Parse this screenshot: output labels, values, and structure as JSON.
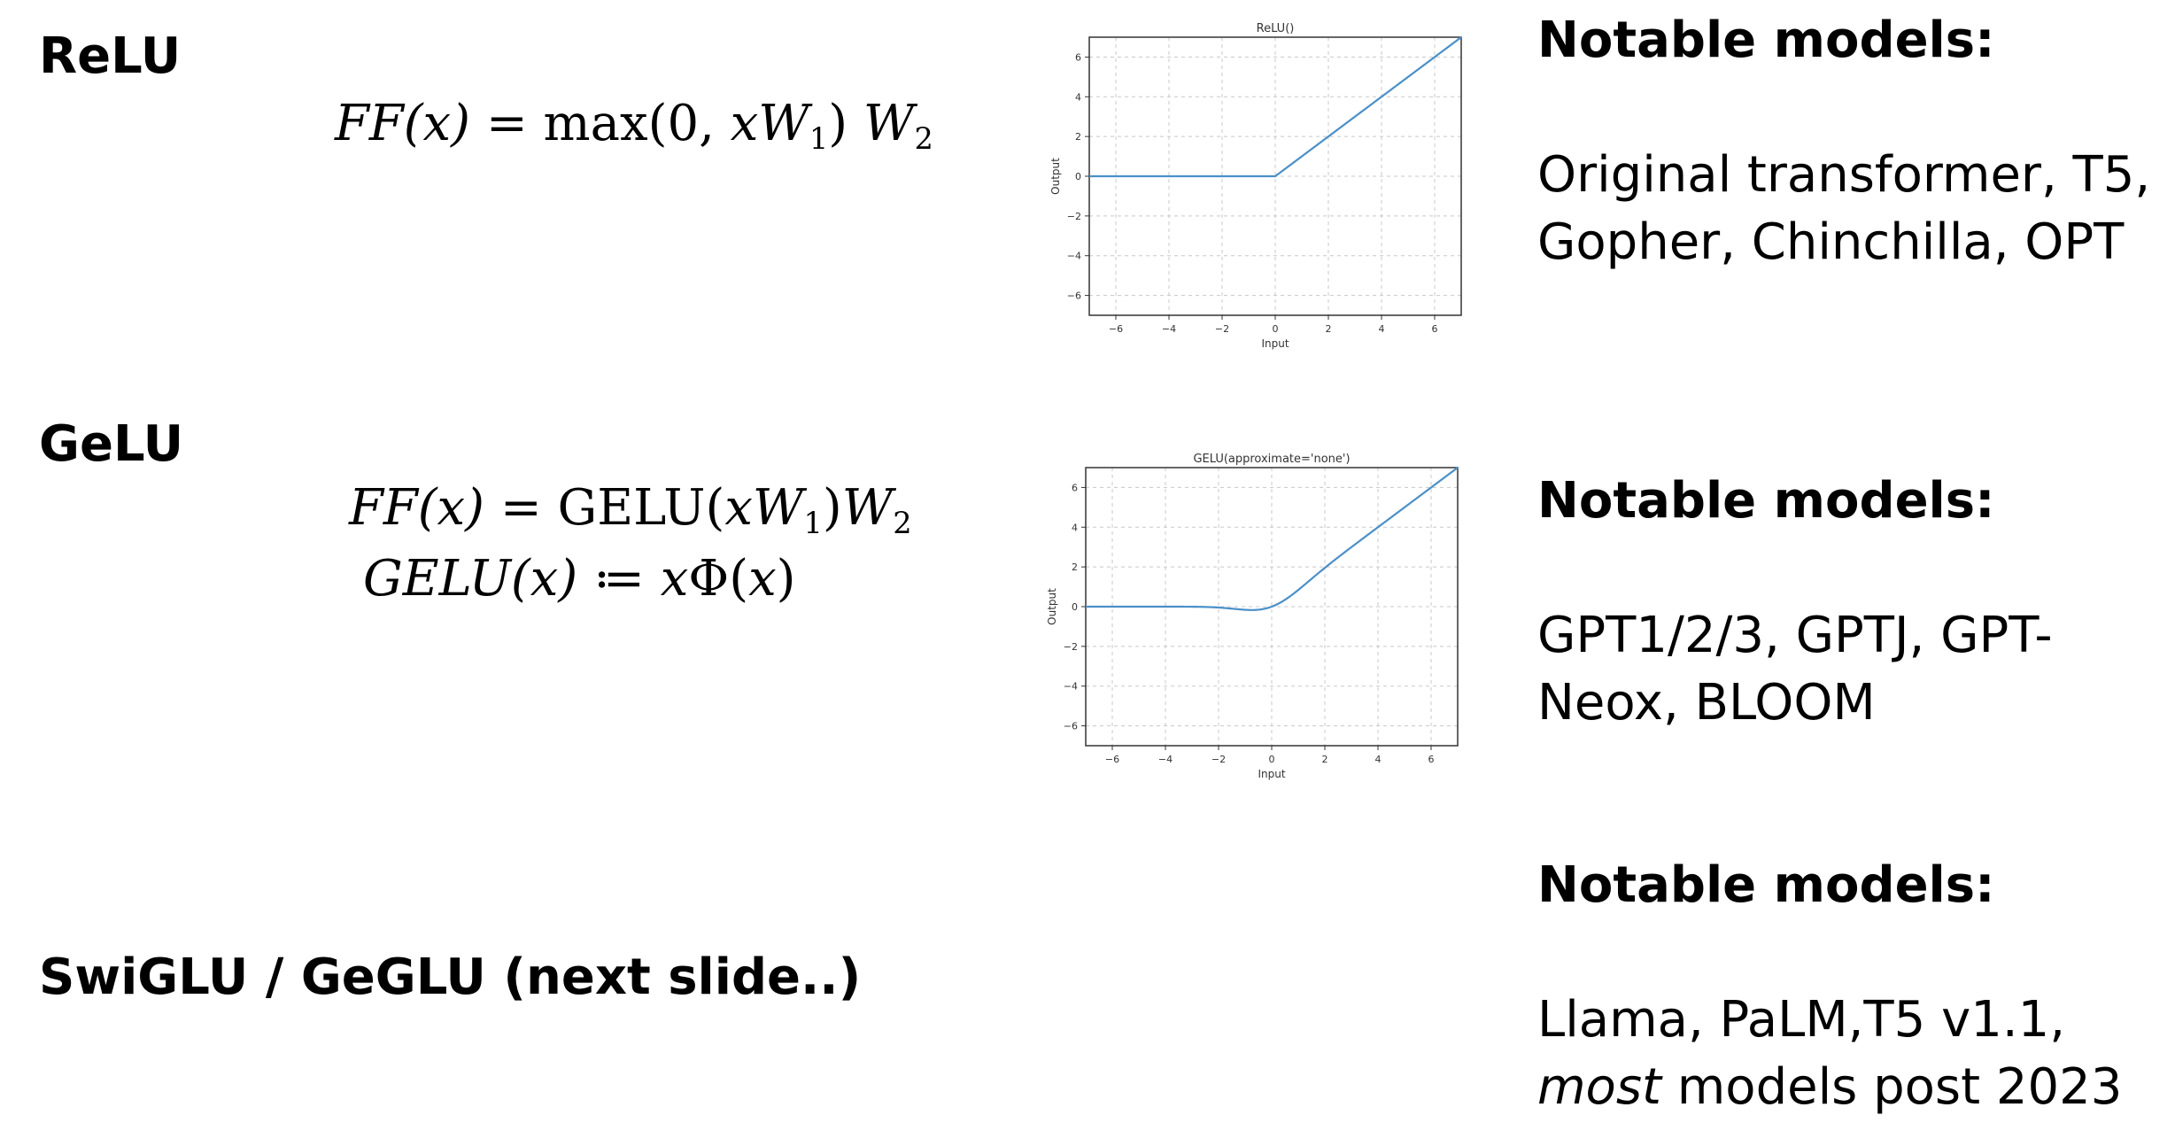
{
  "sections": {
    "relu": {
      "heading": "ReLU",
      "formula": {
        "lhs": "FF(x)",
        "eq": "=",
        "rhs_fn": "max(0, ",
        "x": "x",
        "W1": "W",
        "sub1": "1",
        "close": ")",
        "W2": "W",
        "sub2": "2"
      },
      "notable_title": "Notable models:",
      "notable_text": "Original transformer, T5, Gopher, Chinchilla, OPT"
    },
    "gelu": {
      "heading": "GeLU",
      "formula1": {
        "lhs": "FF(x)",
        "eq": "=",
        "fn": "GELU(",
        "x": "x",
        "W1": "W",
        "sub1": "1",
        "close": ")",
        "W2": "W",
        "sub2": "2"
      },
      "formula2": {
        "lhs": "GELU(x)",
        "def": "≔",
        "rhs_x": "x",
        "rhs_phi": "Φ(",
        "rhs_arg": "x",
        "rhs_close": ")"
      },
      "notable_title": "Notable models:",
      "notable_text": "GPT1/2/3, GPTJ, GPT-Neox, BLOOM"
    },
    "swiglu": {
      "heading": "SwiGLU / GeGLU (next slide..)",
      "notable_title": "Notable models:",
      "notable_text_prefix": "Llama, PaLM,T5 v1.1, ",
      "notable_text_italic": "most",
      "notable_text_suffix": " models post 2023"
    }
  },
  "chart_data": [
    {
      "type": "line",
      "title": "ReLU()",
      "xlabel": "Input",
      "ylabel": "Output",
      "xlim": [
        -7,
        7
      ],
      "ylim": [
        -7,
        7
      ],
      "xticks": [
        -6,
        -4,
        -2,
        0,
        2,
        4,
        6
      ],
      "yticks": [
        -6,
        -4,
        -2,
        0,
        2,
        4,
        6
      ],
      "tick_labels": [
        "−6",
        "−4",
        "−2",
        "0",
        "2",
        "4",
        "6"
      ],
      "grid": true,
      "function": "relu",
      "color": "#4a90c8"
    },
    {
      "type": "line",
      "title": "GELU(approximate='none')",
      "xlabel": "Input",
      "ylabel": "Output",
      "xlim": [
        -7,
        7
      ],
      "ylim": [
        -7,
        7
      ],
      "xticks": [
        -6,
        -4,
        -2,
        0,
        2,
        4,
        6
      ],
      "yticks": [
        -6,
        -4,
        -2,
        0,
        2,
        4,
        6
      ],
      "tick_labels": [
        "−6",
        "−4",
        "−2",
        "0",
        "2",
        "4",
        "6"
      ],
      "grid": true,
      "function": "gelu",
      "color": "#4a90c8"
    }
  ]
}
